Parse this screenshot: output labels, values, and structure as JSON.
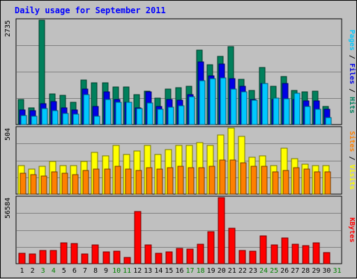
{
  "chart_data": {
    "type": "bar",
    "title": "Daily usage for September 2011",
    "categories": [
      "1",
      "2",
      "3",
      "4",
      "5",
      "6",
      "7",
      "8",
      "9",
      "10",
      "11",
      "12",
      "13",
      "14",
      "15",
      "16",
      "17",
      "18",
      "19",
      "20",
      "21",
      "22",
      "23",
      "24",
      "25",
      "26",
      "27",
      "28",
      "29",
      "30",
      "31"
    ],
    "weekend_days": [
      "3",
      "4",
      "10",
      "11",
      "17",
      "18",
      "24",
      "25",
      "31"
    ],
    "colors": {
      "hits": "#00805c",
      "files": "#0000e6",
      "pages": "#00c8ff",
      "visits": "#ffff00",
      "sites": "#ff8000",
      "kbytes": "#ff0000",
      "weekday_label": "#000000",
      "weekend_label": "#008000",
      "title": "#0000ff",
      "plot_bg": "#c0c0c0",
      "grid": "#808080"
    },
    "panels": [
      {
        "id": "hits_files_pages",
        "ymax_label": "2735",
        "ymax": 2735,
        "legend": [
          "Pages",
          "Files",
          "Hits"
        ],
        "legend_separator": "/",
        "series": [
          {
            "name": "Hits",
            "color": "#00805c",
            "values": [
              650,
              430,
              2735,
              810,
              760,
              590,
              1160,
              1090,
              1090,
              990,
              980,
              790,
              880,
              700,
              930,
              960,
              1000,
              1950,
              1570,
              1780,
              2050,
              1180,
              890,
              1490,
              1010,
              1250,
              890,
              860,
              880,
              480,
              null
            ]
          },
          {
            "name": "Files",
            "color": "#0000e6",
            "values": [
              390,
              360,
              540,
              610,
              440,
              380,
              930,
              480,
              860,
              660,
              590,
              440,
              850,
              480,
              650,
              630,
              780,
              1650,
              1280,
              1580,
              1200,
              1010,
              660,
              1080,
              650,
              1080,
              650,
              620,
              620,
              410,
              null
            ]
          },
          {
            "name": "Pages",
            "color": "#00c8ff",
            "values": [
              230,
              210,
              420,
              370,
              300,
              270,
              790,
              210,
              660,
              590,
              580,
              420,
              560,
              400,
              450,
              490,
              730,
              1150,
              1210,
              1220,
              930,
              860,
              630,
              1080,
              700,
              670,
              820,
              480,
              400,
              190,
              null
            ]
          }
        ]
      },
      {
        "id": "visits_sites",
        "ymax_label": "504",
        "ymax": 504,
        "legend": [
          "Sites",
          "Visits"
        ],
        "legend_separator": "/",
        "series": [
          {
            "name": "Visits",
            "color": "#ffff00",
            "values": [
              220,
              190,
              210,
              250,
              220,
              220,
              250,
              320,
              290,
              370,
              300,
              330,
              370,
              300,
              340,
              370,
              370,
              390,
              370,
              450,
              504,
              440,
              280,
              290,
              220,
              350,
              270,
              230,
              220,
              220,
              null
            ]
          },
          {
            "name": "Sites",
            "color": "#ff8000",
            "values": [
              160,
              150,
              140,
              170,
              160,
              150,
              180,
              190,
              190,
              210,
              190,
              180,
              200,
              190,
              200,
              210,
              200,
              200,
              210,
              260,
              260,
              240,
              210,
              210,
              170,
              180,
              200,
              190,
              170,
              170,
              null
            ]
          }
        ]
      },
      {
        "id": "kbytes",
        "ymax_label": "56584",
        "ymax": 56584,
        "legend": [
          "KBytes"
        ],
        "legend_separator": "",
        "series": [
          {
            "name": "KBytes",
            "color": "#ff0000",
            "values": [
              9100,
              8200,
              11400,
              11600,
              17600,
              17000,
              8100,
              16000,
              10400,
              10600,
              5500,
              44700,
              15900,
              8700,
              10300,
              13400,
              12700,
              16600,
              27400,
              56584,
              30100,
              11600,
              11000,
              24000,
              15800,
              21900,
              16900,
              15300,
              17900,
              9300,
              null
            ]
          }
        ]
      }
    ]
  }
}
